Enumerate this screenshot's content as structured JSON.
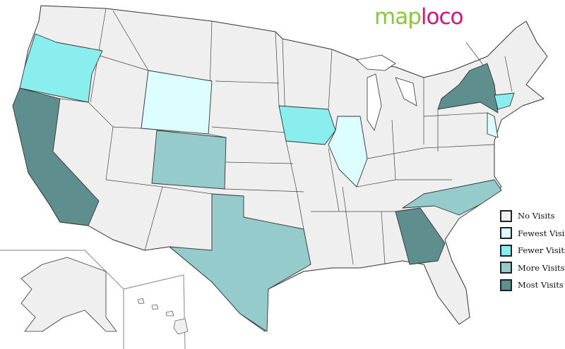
{
  "logo": {
    "part1": "map",
    "part2": "loco"
  },
  "colors": {
    "none": "#efefef",
    "fewest": "#dcfefe",
    "fewer": "#8aeeee",
    "more": "#96cbcb",
    "most": "#5f8e8e",
    "border": "#333333"
  },
  "legend": [
    {
      "level": "none",
      "label": "No Visits"
    },
    {
      "level": "fewest",
      "label": "Fewest Visits"
    },
    {
      "level": "fewer",
      "label": "Fewer Visits"
    },
    {
      "level": "more",
      "label": "More Visits"
    },
    {
      "level": "most",
      "label": "Most Visits"
    }
  ],
  "states": [
    {
      "name": "Oregon",
      "level": "fewer"
    },
    {
      "name": "California",
      "level": "most"
    },
    {
      "name": "Wyoming",
      "level": "fewest"
    },
    {
      "name": "Colorado",
      "level": "more"
    },
    {
      "name": "Texas",
      "level": "more"
    },
    {
      "name": "Iowa",
      "level": "fewer"
    },
    {
      "name": "Illinois",
      "level": "fewest"
    },
    {
      "name": "New York",
      "level": "most"
    },
    {
      "name": "Connecticut",
      "level": "fewer"
    },
    {
      "name": "New Jersey",
      "level": "fewest"
    },
    {
      "name": "North Carolina",
      "level": "more"
    },
    {
      "name": "Georgia",
      "level": "most"
    }
  ]
}
